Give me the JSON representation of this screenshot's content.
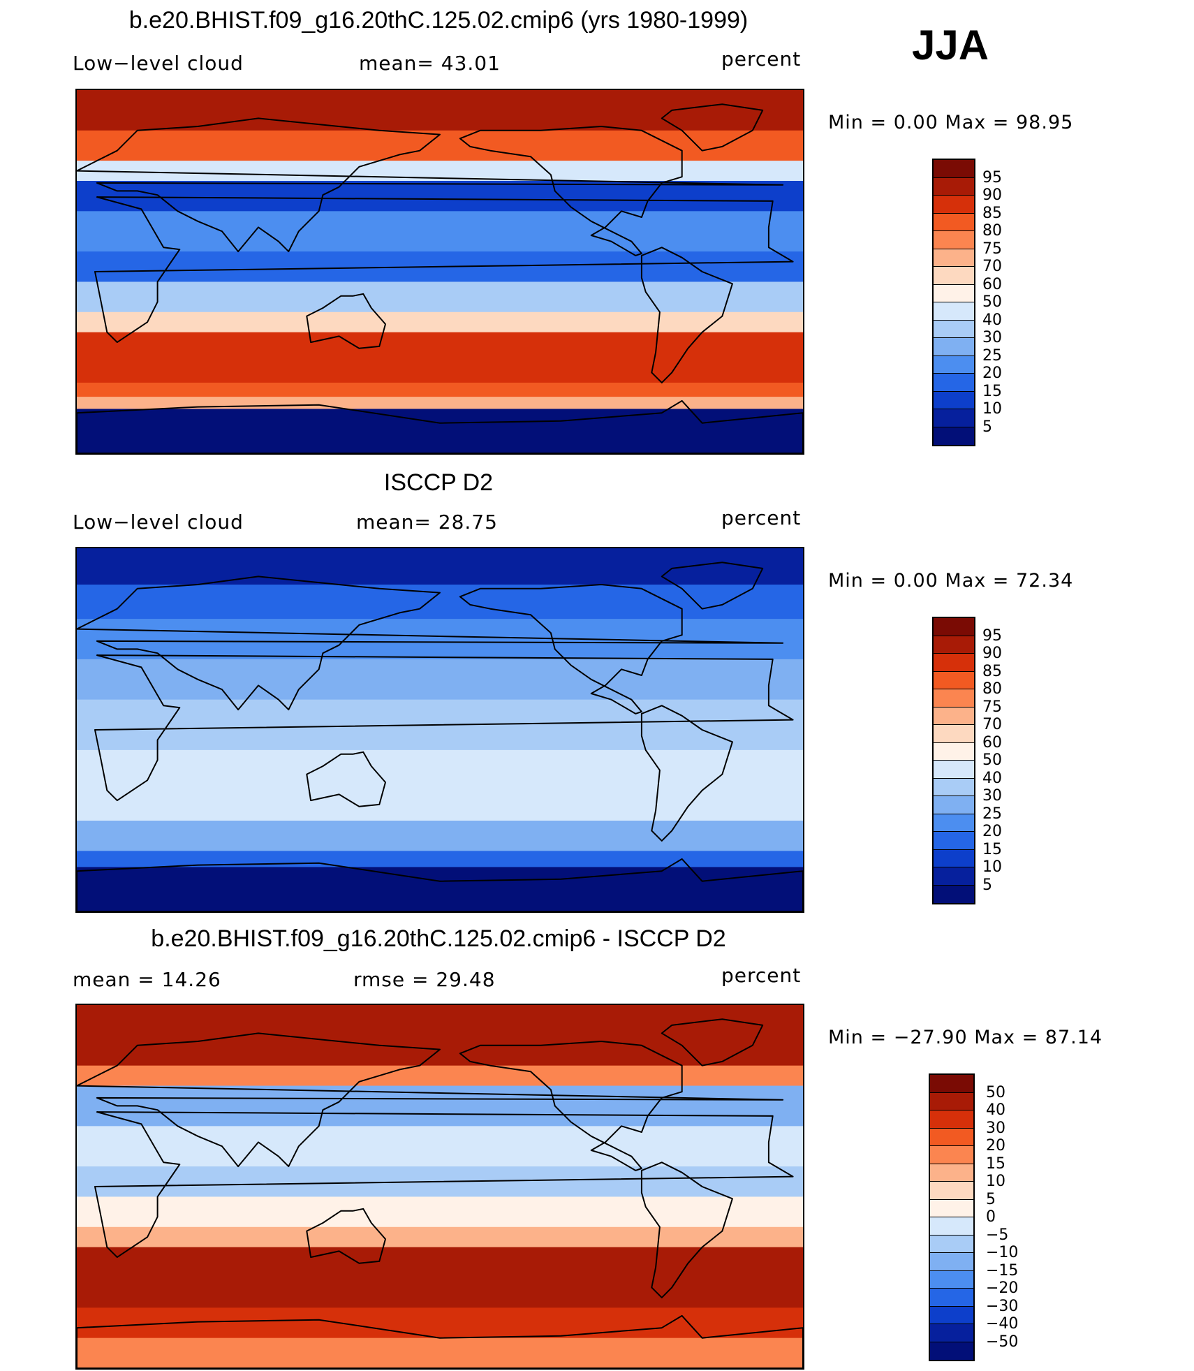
{
  "season": "JJA",
  "panels": [
    {
      "title": "b.e20.BHIST.f09_g16.20thC.125.02.cmip6 (yrs 1980-1999)",
      "left_label": "Low−level cloud",
      "center_label": "mean=   43.01",
      "right_label": "percent",
      "minmax": "Min  =     0.00  Max  =    98.95",
      "colorbar": {
        "labels": [
          "95",
          "90",
          "85",
          "80",
          "75",
          "70",
          "60",
          "50",
          "40",
          "30",
          "25",
          "20",
          "15",
          "10",
          "5"
        ],
        "colors": [
          "#7a0b04",
          "#a81b06",
          "#d6300a",
          "#f25a22",
          "#fb8550",
          "#fcb28a",
          "#fdd9c0",
          "#fff2e8",
          "#d6e8fb",
          "#a9ccf6",
          "#7fb0f2",
          "#4c8ef0",
          "#2566e6",
          "#0d3fcb",
          "#06209d",
          "#020f78"
        ]
      },
      "field_bands": [
        {
          "lat": [
            90,
            70
          ],
          "color": "#a81b06"
        },
        {
          "lat": [
            70,
            55
          ],
          "color": "#f25a22"
        },
        {
          "lat": [
            55,
            45
          ],
          "color": "#d6e8fb"
        },
        {
          "lat": [
            45,
            30
          ],
          "color": "#0d3fcb"
        },
        {
          "lat": [
            30,
            10
          ],
          "color": "#4c8ef0"
        },
        {
          "lat": [
            10,
            -5
          ],
          "color": "#2566e6"
        },
        {
          "lat": [
            -5,
            -20
          ],
          "color": "#a9ccf6"
        },
        {
          "lat": [
            -20,
            -30
          ],
          "color": "#fdd9c0"
        },
        {
          "lat": [
            -30,
            -55
          ],
          "color": "#d6300a"
        },
        {
          "lat": [
            -55,
            -62
          ],
          "color": "#f25a22"
        },
        {
          "lat": [
            -62,
            -68
          ],
          "color": "#fcb28a"
        },
        {
          "lat": [
            -68,
            -90
          ],
          "color": "#020f78"
        }
      ]
    },
    {
      "title": "ISCCP D2",
      "left_label": "Low−level cloud",
      "center_label": "mean=   28.75",
      "right_label": "percent",
      "minmax": "Min  =     0.00  Max  =    72.34",
      "colorbar": {
        "labels": [
          "95",
          "90",
          "85",
          "80",
          "75",
          "70",
          "60",
          "50",
          "40",
          "30",
          "25",
          "20",
          "15",
          "10",
          "5"
        ],
        "colors": [
          "#7a0b04",
          "#a81b06",
          "#d6300a",
          "#f25a22",
          "#fb8550",
          "#fcb28a",
          "#fdd9c0",
          "#fff2e8",
          "#d6e8fb",
          "#a9ccf6",
          "#7fb0f2",
          "#4c8ef0",
          "#2566e6",
          "#0d3fcb",
          "#06209d",
          "#020f78"
        ]
      },
      "field_bands": [
        {
          "lat": [
            90,
            72
          ],
          "color": "#06209d"
        },
        {
          "lat": [
            72,
            55
          ],
          "color": "#2566e6"
        },
        {
          "lat": [
            55,
            35
          ],
          "color": "#4c8ef0"
        },
        {
          "lat": [
            35,
            15
          ],
          "color": "#7fb0f2"
        },
        {
          "lat": [
            15,
            -10
          ],
          "color": "#a9ccf6"
        },
        {
          "lat": [
            -10,
            -25
          ],
          "color": "#d6e8fb"
        },
        {
          "lat": [
            -25,
            -45
          ],
          "color": "#d6e8fb"
        },
        {
          "lat": [
            -45,
            -60
          ],
          "color": "#7fb0f2"
        },
        {
          "lat": [
            -60,
            -68
          ],
          "color": "#2566e6"
        },
        {
          "lat": [
            -68,
            -90
          ],
          "color": "#020f78"
        }
      ]
    },
    {
      "title": "b.e20.BHIST.f09_g16.20thC.125.02.cmip6 - ISCCP D2",
      "left_label": "mean  =    14.26",
      "center_label": "rmse  =    29.48",
      "right_label": "percent",
      "minmax": "Min  = −27.90  Max  =    87.14",
      "colorbar": {
        "labels": [
          "50",
          "40",
          "30",
          "20",
          "15",
          "10",
          "5",
          "0",
          "−5",
          "−10",
          "−15",
          "−20",
          "−30",
          "−40",
          "−50"
        ],
        "colors": [
          "#7a0b04",
          "#a81b06",
          "#d6300a",
          "#f25a22",
          "#fb8550",
          "#fcb28a",
          "#fdd9c0",
          "#fff2e8",
          "#d6e8fb",
          "#a9ccf6",
          "#7fb0f2",
          "#4c8ef0",
          "#2566e6",
          "#0d3fcb",
          "#06209d",
          "#020f78"
        ]
      },
      "field_bands": [
        {
          "lat": [
            90,
            60
          ],
          "color": "#a81b06"
        },
        {
          "lat": [
            60,
            50
          ],
          "color": "#fb8550"
        },
        {
          "lat": [
            50,
            30
          ],
          "color": "#7fb0f2"
        },
        {
          "lat": [
            30,
            10
          ],
          "color": "#d6e8fb"
        },
        {
          "lat": [
            10,
            -5
          ],
          "color": "#a9ccf6"
        },
        {
          "lat": [
            -5,
            -20
          ],
          "color": "#fff2e8"
        },
        {
          "lat": [
            -20,
            -30
          ],
          "color": "#fcb28a"
        },
        {
          "lat": [
            -30,
            -60
          ],
          "color": "#a81b06"
        },
        {
          "lat": [
            -60,
            -75
          ],
          "color": "#d6300a"
        },
        {
          "lat": [
            -75,
            -90
          ],
          "color": "#fb8550"
        }
      ]
    }
  ]
}
